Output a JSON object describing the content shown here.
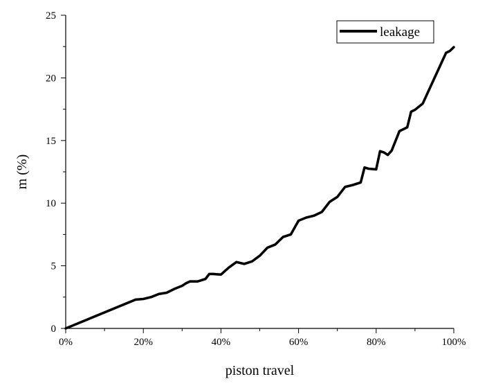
{
  "chart_data": {
    "type": "line",
    "title": "",
    "xlabel": "piston travel",
    "ylabel": "m (%)",
    "xlim": [
      0,
      100
    ],
    "ylim": [
      0,
      25
    ],
    "x_tick_labels": [
      "0%",
      "20%",
      "40%",
      "60%",
      "80%",
      "100%"
    ],
    "x_tick_values": [
      0,
      20,
      40,
      60,
      80,
      100
    ],
    "y_tick_labels": [
      "0",
      "5",
      "10",
      "15",
      "20",
      "25"
    ],
    "y_tick_values": [
      0,
      5,
      10,
      15,
      20,
      25
    ],
    "grid": false,
    "legend": {
      "position": "top-right"
    },
    "series": [
      {
        "name": "leakage",
        "color": "#000000",
        "x": [
          0,
          18,
          20,
          22,
          24,
          26,
          28,
          30,
          31,
          32,
          34,
          36,
          37,
          38,
          40,
          42,
          44,
          46,
          48,
          50,
          52,
          54,
          56,
          58,
          60,
          62,
          64,
          66,
          68,
          70,
          72,
          74,
          76,
          77,
          78,
          80,
          81,
          82,
          83,
          84,
          86,
          88,
          89,
          90,
          92,
          94,
          96,
          98,
          99,
          100
        ],
        "y": [
          0,
          2.3,
          2.35,
          2.5,
          2.75,
          2.85,
          3.15,
          3.4,
          3.6,
          3.75,
          3.75,
          3.95,
          4.35,
          4.35,
          4.3,
          4.85,
          5.3,
          5.15,
          5.35,
          5.8,
          6.45,
          6.7,
          7.3,
          7.5,
          8.6,
          8.85,
          9.0,
          9.3,
          10.1,
          10.5,
          11.3,
          11.45,
          11.65,
          12.85,
          12.75,
          12.7,
          14.15,
          14.05,
          13.85,
          14.2,
          15.75,
          16.05,
          17.3,
          17.45,
          17.95,
          19.3,
          20.65,
          22.0,
          22.15,
          22.45
        ]
      }
    ]
  }
}
